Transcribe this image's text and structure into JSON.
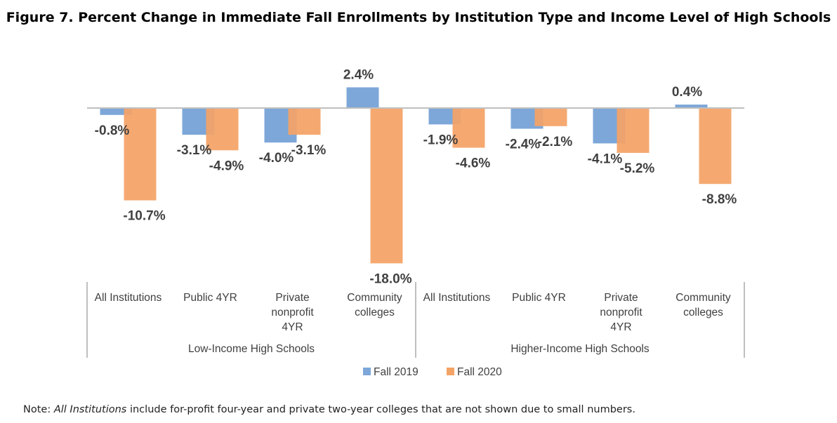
{
  "title": "Figure 7. Percent Change in Immediate Fall Enrollments by Institution Type and Income Level of High Schools",
  "note": {
    "prefix": "Note: ",
    "italic": "All Institutions",
    "suffix": " include for-profit four-year and private two-year colleges that are not shown due to small numbers."
  },
  "colors": {
    "fall2019": "#7da7d9",
    "fall2020": "#f4a366"
  },
  "chart_data": {
    "type": "bar",
    "title": "Figure 7. Percent Change in Immediate Fall Enrollments by Institution Type and Income Level of High Schools",
    "groups": [
      {
        "label": "Low-Income High Schools",
        "categories": [
          [
            "All Institutions"
          ],
          [
            "Public 4YR"
          ],
          [
            "Private",
            "nonprofit",
            "4YR"
          ],
          [
            "Community",
            "colleges"
          ]
        ]
      },
      {
        "label": "Higher-Income High Schools",
        "categories": [
          [
            "All Institutions"
          ],
          [
            "Public 4YR"
          ],
          [
            "Private",
            "nonprofit",
            "4YR"
          ],
          [
            "Community",
            "colleges"
          ]
        ]
      }
    ],
    "series": [
      {
        "name": "Fall 2019",
        "values": [
          -0.8,
          -3.1,
          -4.0,
          2.4,
          -1.9,
          -2.4,
          -4.1,
          0.4
        ],
        "labels": [
          "-0.8%",
          "-3.1%",
          "-4.0%",
          "2.4%",
          "-1.9%",
          "-2.4%",
          "-4.1%",
          "0.4%"
        ]
      },
      {
        "name": "Fall 2020",
        "values": [
          -10.7,
          -4.9,
          -3.1,
          -18.0,
          -4.6,
          -2.1,
          -5.2,
          -8.8
        ],
        "labels": [
          "-10.7%",
          "-4.9%",
          "-3.1%",
          "-18.0%",
          "-4.6%",
          "-2.1%",
          "-5.2%",
          "-8.8%"
        ]
      }
    ],
    "ylim": [
      -18.0,
      2.4
    ],
    "legend": "bottom-center",
    "xlabel": "",
    "ylabel": ""
  }
}
